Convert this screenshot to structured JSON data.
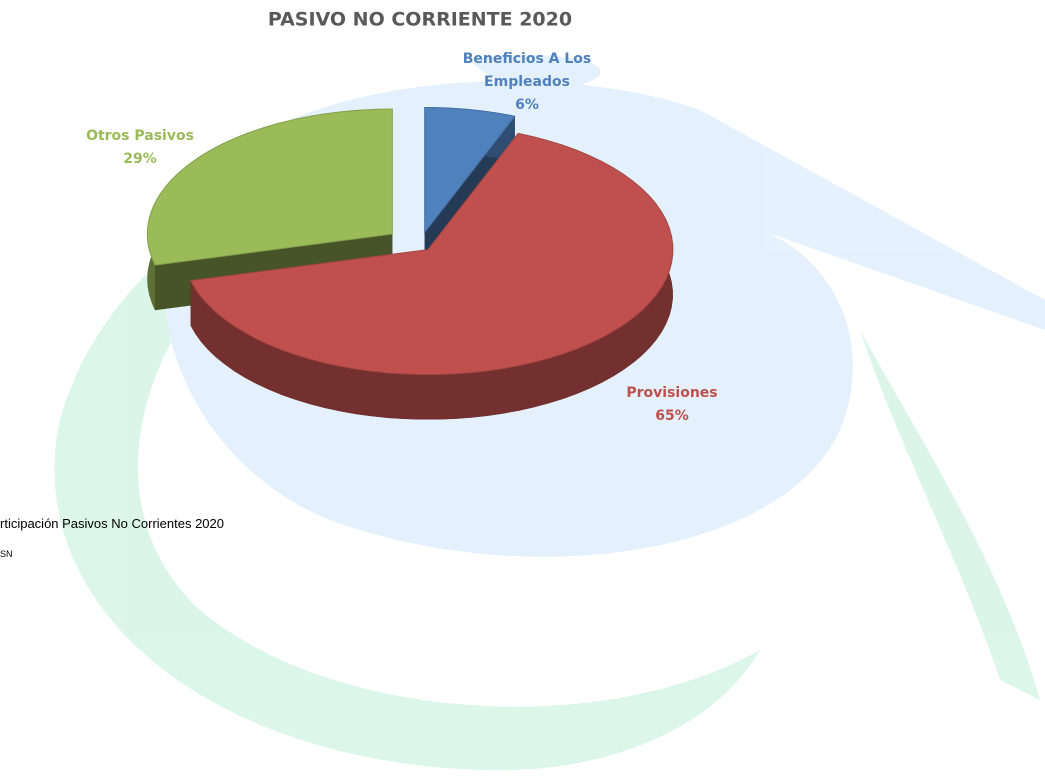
{
  "chart_data": {
    "type": "pie",
    "title": "PASIVO NO CORRIENTE 2020",
    "categories": [
      "Beneficios A Los Empleados",
      "Provisiones",
      "Otros Pasivos"
    ],
    "values": [
      6,
      65,
      29
    ],
    "value_labels": [
      "6%",
      "65%",
      "29%"
    ],
    "colors": [
      "#4f81bd",
      "#c0504d",
      "#9bbb59"
    ]
  },
  "caption": {
    "title": "rticipación Pasivos No Corrientes 2020",
    "source": "SN"
  }
}
